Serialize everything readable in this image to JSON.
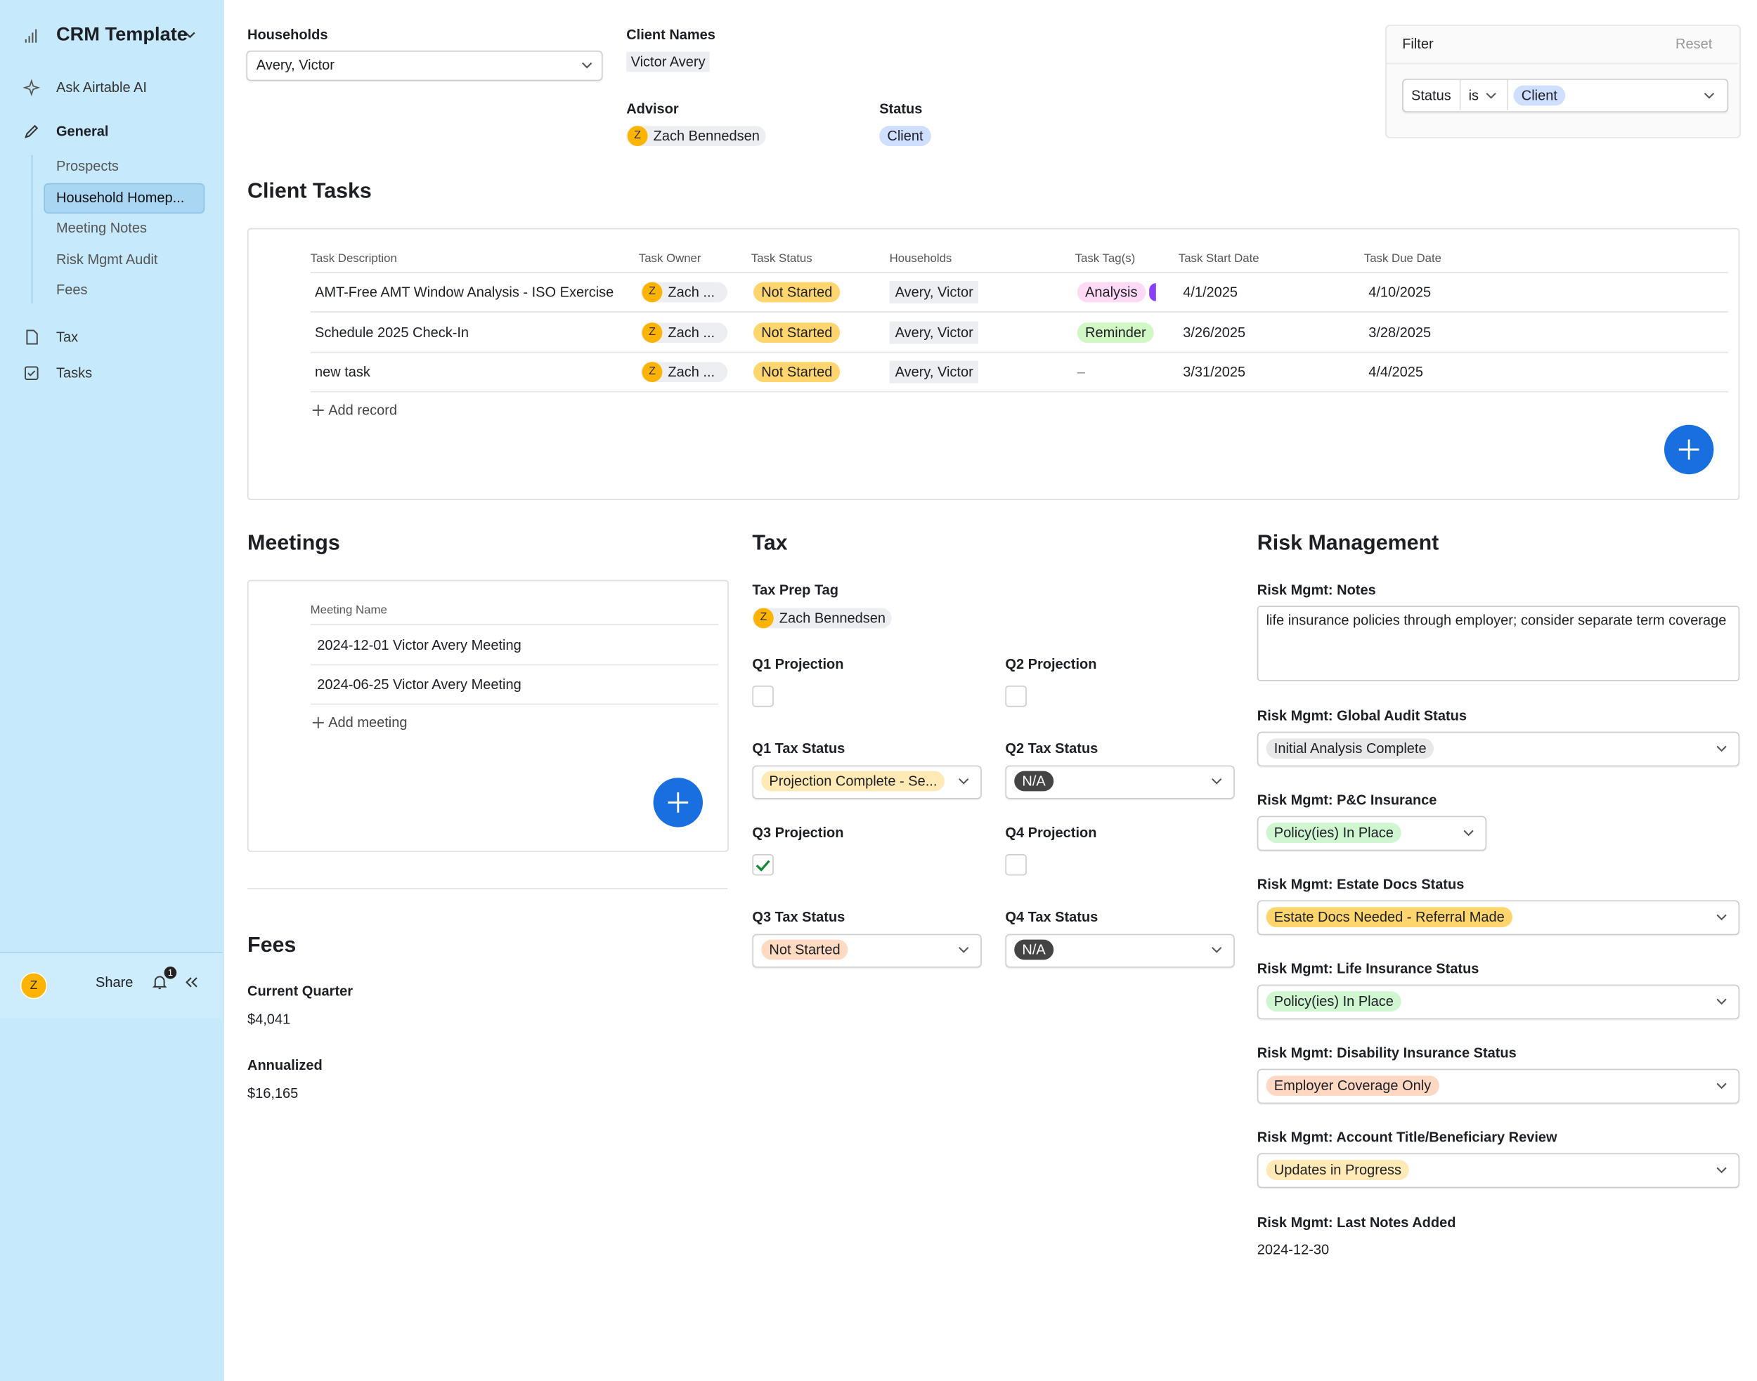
{
  "sidebar": {
    "app_name": "CRM Template",
    "ask_ai": "Ask Airtable AI",
    "general": "General",
    "pages": [
      "Prospects",
      "Household Homep...",
      "Meeting Notes",
      "Risk Mgmt Audit",
      "Fees"
    ],
    "selected_page": 1,
    "tax": "Tax",
    "tasks": "Tasks",
    "avatar": "Z",
    "share": "Share",
    "notifications": "1"
  },
  "header": {
    "households_label": "Households",
    "households_value": "Avery, Victor",
    "client_names_label": "Client Names",
    "client_names_value": "Victor Avery",
    "advisor_label": "Advisor",
    "advisor_avatar": "Z",
    "advisor_name": "Zach Bennedsen",
    "status_label": "Status",
    "status_value": "Client"
  },
  "filter": {
    "title": "Filter",
    "reset": "Reset",
    "field": "Status",
    "operator": "is",
    "value": "Client"
  },
  "client_tasks": {
    "title": "Client Tasks",
    "columns": [
      "Task Description",
      "Task Owner",
      "Task Status",
      "Households",
      "Task Tag(s)",
      "Task Start Date",
      "Task Due Date"
    ],
    "rows": [
      {
        "description": "AMT-Free AMT Window Analysis - ISO Exercise",
        "owner_avatar": "Z",
        "owner": "Zach ...",
        "status": "Not Started",
        "household": "Avery, Victor",
        "tag": "Analysis",
        "tag_color": "#ffdaf6",
        "start_date": "4/1/2025",
        "due_date": "4/10/2025"
      },
      {
        "description": "Schedule 2025 Check-In",
        "owner_avatar": "Z",
        "owner": "Zach ...",
        "status": "Not Started",
        "household": "Avery, Victor",
        "tag": "Reminder",
        "tag_color": "#d1f7c4",
        "start_date": "3/26/2025",
        "due_date": "3/28/2025"
      },
      {
        "description": "new task",
        "owner_avatar": "Z",
        "owner": "Zach ...",
        "status": "Not Started",
        "household": "Avery, Victor",
        "tag": "–",
        "tag_color": null,
        "start_date": "3/31/2025",
        "due_date": "4/4/2025"
      }
    ],
    "add_record": "Add record"
  },
  "meetings": {
    "title": "Meetings",
    "column": "Meeting Name",
    "rows": [
      "2024-12-01 Victor Avery Meeting",
      "2024-06-25 Victor Avery Meeting"
    ],
    "add_meeting": "Add meeting"
  },
  "fees": {
    "title": "Fees",
    "current_quarter_label": "Current Quarter",
    "current_quarter": "$4,041",
    "annualized_label": "Annualized",
    "annualized": "$16,165"
  },
  "tax": {
    "title": "Tax",
    "prep_tag_label": "Tax Prep Tag",
    "prep_avatar": "Z",
    "prep_name": "Zach Bennedsen",
    "quarters": [
      {
        "projection_label": "Q1 Projection",
        "checked": false,
        "status_label": "Q1 Tax Status",
        "status": "Projection Complete - Se...",
        "status_color": "#ffeab6"
      },
      {
        "projection_label": "Q2 Projection",
        "checked": false,
        "status_label": "Q2 Tax Status",
        "status": "N/A",
        "status_color": "#444444"
      },
      {
        "projection_label": "Q3 Projection",
        "checked": true,
        "status_label": "Q3 Tax Status",
        "status": "Not Started",
        "status_color": "#ffdac2"
      },
      {
        "projection_label": "Q4 Projection",
        "checked": false,
        "status_label": "Q4 Tax Status",
        "status": "N/A",
        "status_color": "#444444"
      }
    ]
  },
  "risk": {
    "title": "Risk Management",
    "notes_label": "Risk Mgmt: Notes",
    "notes": "life insurance policies through employer; consider separate term coverage",
    "fields": [
      {
        "label": "Risk Mgmt: Global Audit Status",
        "value": "Initial Analysis Complete",
        "color": "#e8e8e8"
      },
      {
        "label": "Risk Mgmt: P&C Insurance",
        "value": "Policy(ies) In Place",
        "color": "#cff5d1"
      },
      {
        "label": "Risk Mgmt: Estate Docs Status",
        "value": "Estate Docs Needed - Referral Made",
        "color": "#ffd66e"
      },
      {
        "label": "Risk Mgmt: Life Insurance Status",
        "value": "Policy(ies) In Place",
        "color": "#cff5d1"
      },
      {
        "label": "Risk Mgmt: Disability Insurance Status",
        "value": "Employer Coverage Only",
        "color": "#ffd8c4"
      },
      {
        "label": "Risk Mgmt: Account Title/Beneficiary Review",
        "value": "Updates in Progress",
        "color": "#ffeab6"
      }
    ],
    "last_notes_label": "Risk Mgmt: Last Notes Added",
    "last_notes": "2024-12-30"
  }
}
